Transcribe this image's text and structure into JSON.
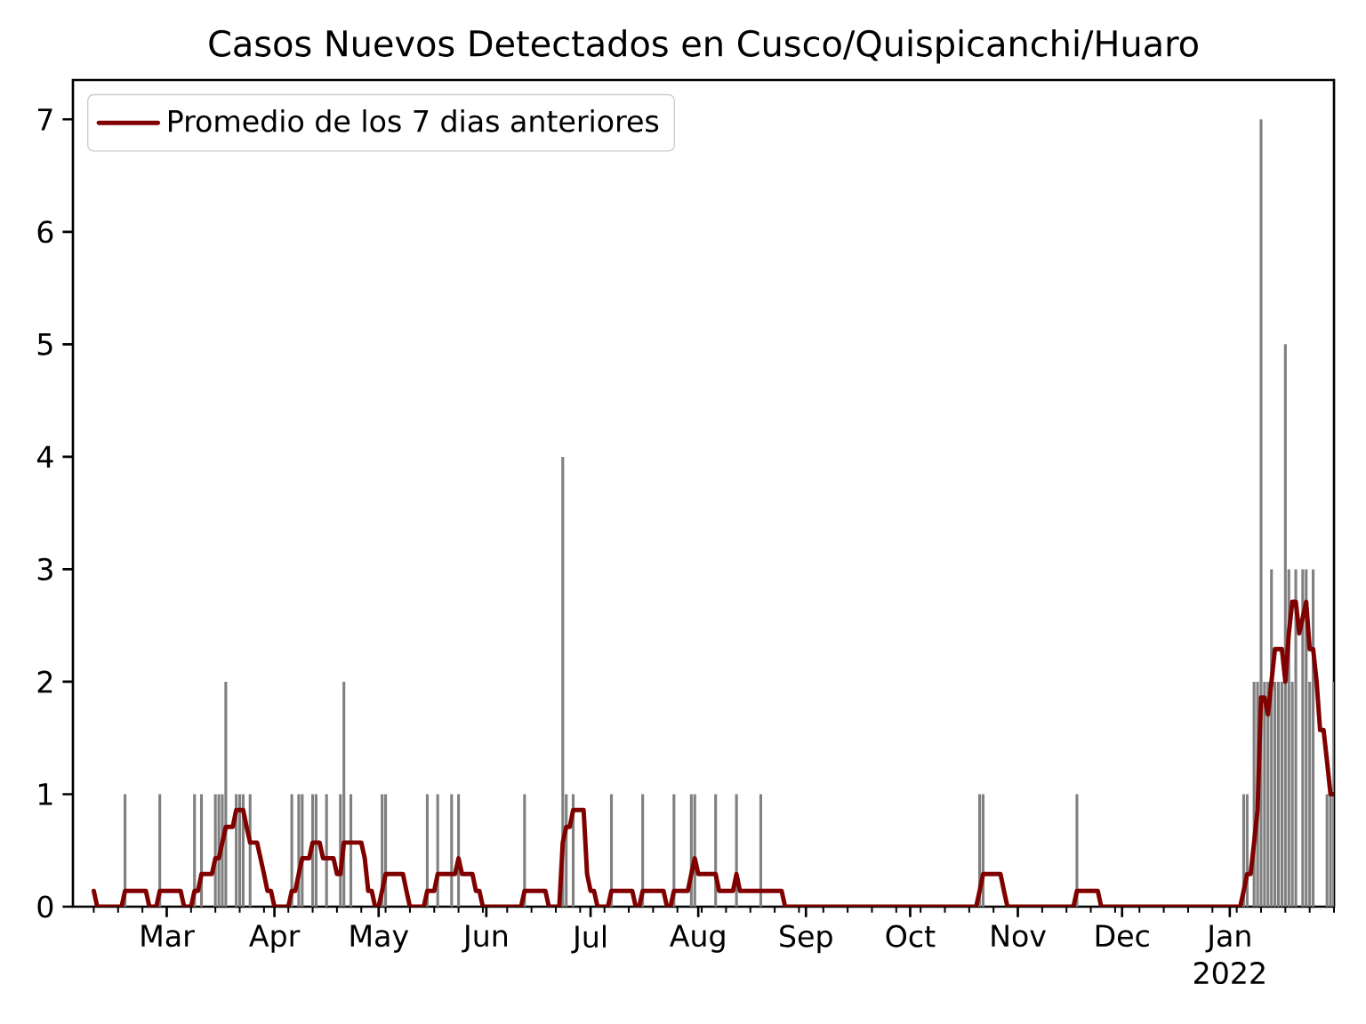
{
  "chart_data": {
    "type": "bar",
    "title": "Casos Nuevos Detectados en Cusco/Quispicanchi/Huaro",
    "xlim": [
      "2021-02-02",
      "2022-01-31"
    ],
    "ylim": [
      0,
      7.35
    ],
    "yticks": [
      0,
      1,
      2,
      3,
      4,
      5,
      6,
      7
    ],
    "xticks": [
      {
        "value": "2021-02-08",
        "label": null
      },
      {
        "value": "2021-02-15",
        "label": null
      },
      {
        "value": "2021-02-22",
        "label": null
      },
      {
        "value": "2021-03-01",
        "label": "Mar"
      },
      {
        "value": "2021-03-08",
        "label": null
      },
      {
        "value": "2021-03-15",
        "label": null
      },
      {
        "value": "2021-03-22",
        "label": null
      },
      {
        "value": "2021-03-29",
        "label": null
      },
      {
        "value": "2021-04-01",
        "label": "Apr"
      },
      {
        "value": "2021-04-05",
        "label": null
      },
      {
        "value": "2021-04-12",
        "label": null
      },
      {
        "value": "2021-04-19",
        "label": null
      },
      {
        "value": "2021-04-26",
        "label": null
      },
      {
        "value": "2021-05-01",
        "label": "May"
      },
      {
        "value": "2021-05-03",
        "label": null
      },
      {
        "value": "2021-05-10",
        "label": null
      },
      {
        "value": "2021-05-17",
        "label": null
      },
      {
        "value": "2021-05-24",
        "label": null
      },
      {
        "value": "2021-05-31",
        "label": null
      },
      {
        "value": "2021-06-01",
        "label": "Jun"
      },
      {
        "value": "2021-06-07",
        "label": null
      },
      {
        "value": "2021-06-14",
        "label": null
      },
      {
        "value": "2021-06-21",
        "label": null
      },
      {
        "value": "2021-06-28",
        "label": null
      },
      {
        "value": "2021-07-01",
        "label": "Jul"
      },
      {
        "value": "2021-07-05",
        "label": null
      },
      {
        "value": "2021-07-12",
        "label": null
      },
      {
        "value": "2021-07-19",
        "label": null
      },
      {
        "value": "2021-07-26",
        "label": null
      },
      {
        "value": "2021-08-01",
        "label": "Aug"
      },
      {
        "value": "2021-08-02",
        "label": null
      },
      {
        "value": "2021-08-09",
        "label": null
      },
      {
        "value": "2021-08-16",
        "label": null
      },
      {
        "value": "2021-08-23",
        "label": null
      },
      {
        "value": "2021-08-30",
        "label": null
      },
      {
        "value": "2021-09-01",
        "label": "Sep"
      },
      {
        "value": "2021-09-06",
        "label": null
      },
      {
        "value": "2021-09-13",
        "label": null
      },
      {
        "value": "2021-09-20",
        "label": null
      },
      {
        "value": "2021-09-27",
        "label": null
      },
      {
        "value": "2021-10-01",
        "label": "Oct"
      },
      {
        "value": "2021-10-04",
        "label": null
      },
      {
        "value": "2021-10-11",
        "label": null
      },
      {
        "value": "2021-10-18",
        "label": null
      },
      {
        "value": "2021-10-25",
        "label": null
      },
      {
        "value": "2021-11-01",
        "label": "Nov"
      },
      {
        "value": "2021-11-08",
        "label": null
      },
      {
        "value": "2021-11-15",
        "label": null
      },
      {
        "value": "2021-11-22",
        "label": null
      },
      {
        "value": "2021-11-29",
        "label": null
      },
      {
        "value": "2021-12-01",
        "label": "Dec"
      },
      {
        "value": "2021-12-06",
        "label": null
      },
      {
        "value": "2021-12-13",
        "label": null
      },
      {
        "value": "2021-12-20",
        "label": null
      },
      {
        "value": "2021-12-27",
        "label": null
      },
      {
        "value": "2022-01-01",
        "label": "Jan 2022"
      },
      {
        "value": "2022-01-03",
        "label": null
      },
      {
        "value": "2022-01-10",
        "label": null
      },
      {
        "value": "2022-01-17",
        "label": null
      },
      {
        "value": "2022-01-24",
        "label": null
      },
      {
        "value": "2022-01-31",
        "label": null
      }
    ],
    "legend": "top left",
    "series": [
      {
        "color": "#808080",
        "x": [
          "2021-02-17",
          "2021-02-27",
          "2021-03-09",
          "2021-03-11",
          "2021-03-15",
          "2021-03-16",
          "2021-03-17",
          "2021-03-18",
          "2021-03-21",
          "2021-03-22",
          "2021-03-23",
          "2021-03-25",
          "2021-04-06",
          "2021-04-08",
          "2021-04-09",
          "2021-04-12",
          "2021-04-13",
          "2021-04-16",
          "2021-04-20",
          "2021-04-21",
          "2021-04-23",
          "2021-05-02",
          "2021-05-03",
          "2021-05-15",
          "2021-05-18",
          "2021-05-22",
          "2021-05-24",
          "2021-06-12",
          "2021-06-23",
          "2021-06-24",
          "2021-06-26",
          "2021-07-07",
          "2021-07-16",
          "2021-07-25",
          "2021-07-30",
          "2021-07-31",
          "2021-08-06",
          "2021-08-12",
          "2021-08-19",
          "2021-10-21",
          "2021-10-22",
          "2021-11-18",
          "2022-01-05",
          "2022-01-06",
          "2022-01-08",
          "2022-01-09",
          "2022-01-10",
          "2022-01-11",
          "2022-01-12",
          "2022-01-13",
          "2022-01-14",
          "2022-01-15",
          "2022-01-16",
          "2022-01-17",
          "2022-01-18",
          "2022-01-19",
          "2022-01-20",
          "2022-01-22",
          "2022-01-23",
          "2022-01-24",
          "2022-01-25",
          "2022-01-29",
          "2022-01-30",
          "2022-01-31"
        ],
        "values": [
          1,
          1,
          1,
          1,
          1,
          1,
          1,
          2,
          1,
          1,
          1,
          1,
          1,
          1,
          1,
          1,
          1,
          1,
          1,
          2,
          1,
          1,
          1,
          1,
          1,
          1,
          1,
          1,
          4,
          1,
          1,
          1,
          1,
          1,
          1,
          1,
          1,
          1,
          1,
          1,
          1,
          1,
          1,
          1,
          2,
          2,
          7,
          2,
          2,
          3,
          2,
          2,
          2,
          5,
          3,
          2,
          3,
          3,
          3,
          2,
          3,
          1,
          1,
          2
        ]
      },
      {
        "type": "line",
        "name": "Promedio de los 7 dias anteriores",
        "color": "#800000",
        "x": [
          "2021-02-08",
          "2021-02-09",
          "2021-02-16",
          "2021-02-17",
          "2021-02-23",
          "2021-02-24",
          "2021-02-26",
          "2021-02-27",
          "2021-03-05",
          "2021-03-06",
          "2021-03-08",
          "2021-03-09",
          "2021-03-10",
          "2021-03-11",
          "2021-03-14",
          "2021-03-15",
          "2021-03-16",
          "2021-03-17",
          "2021-03-18",
          "2021-03-20",
          "2021-03-21",
          "2021-03-23",
          "2021-03-24",
          "2021-03-25",
          "2021-03-27",
          "2021-03-28",
          "2021-03-29",
          "2021-03-30",
          "2021-03-31",
          "2021-04-01",
          "2021-04-05",
          "2021-04-06",
          "2021-04-07",
          "2021-04-08",
          "2021-04-09",
          "2021-04-11",
          "2021-04-12",
          "2021-04-14",
          "2021-04-15",
          "2021-04-18",
          "2021-04-19",
          "2021-04-20",
          "2021-04-21",
          "2021-04-26",
          "2021-04-27",
          "2021-04-28",
          "2021-04-29",
          "2021-04-30",
          "2021-05-01",
          "2021-05-02",
          "2021-05-03",
          "2021-05-08",
          "2021-05-09",
          "2021-05-10",
          "2021-05-14",
          "2021-05-15",
          "2021-05-17",
          "2021-05-18",
          "2021-05-23",
          "2021-05-24",
          "2021-05-25",
          "2021-05-28",
          "2021-05-29",
          "2021-05-30",
          "2021-05-31",
          "2021-06-11",
          "2021-06-12",
          "2021-06-18",
          "2021-06-19",
          "2021-06-22",
          "2021-06-23",
          "2021-06-24",
          "2021-06-25",
          "2021-06-26",
          "2021-06-29",
          "2021-06-30",
          "2021-07-01",
          "2021-07-02",
          "2021-07-03",
          "2021-07-06",
          "2021-07-07",
          "2021-07-13",
          "2021-07-14",
          "2021-07-15",
          "2021-07-16",
          "2021-07-22",
          "2021-07-23",
          "2021-07-24",
          "2021-07-25",
          "2021-07-29",
          "2021-07-30",
          "2021-07-31",
          "2021-08-01",
          "2021-08-06",
          "2021-08-07",
          "2021-08-11",
          "2021-08-12",
          "2021-08-13",
          "2021-08-25",
          "2021-08-26",
          "2021-10-20",
          "2021-10-21",
          "2021-10-22",
          "2021-10-27",
          "2021-10-28",
          "2021-10-29",
          "2021-11-17",
          "2021-11-18",
          "2021-11-24",
          "2021-11-25",
          "2022-01-04",
          "2022-01-05",
          "2022-01-06",
          "2022-01-07",
          "2022-01-08",
          "2022-01-09",
          "2022-01-10",
          "2022-01-11",
          "2022-01-12",
          "2022-01-13",
          "2022-01-14",
          "2022-01-15",
          "2022-01-16",
          "2022-01-17",
          "2022-01-18",
          "2022-01-19",
          "2022-01-20",
          "2022-01-21",
          "2022-01-22",
          "2022-01-23",
          "2022-01-24",
          "2022-01-25",
          "2022-01-26",
          "2022-01-27",
          "2022-01-28",
          "2022-01-29",
          "2022-01-30",
          "2022-01-31"
        ],
        "values": [
          0.14,
          0,
          0,
          0.14,
          0.14,
          0,
          0,
          0.14,
          0.14,
          0,
          0,
          0.14,
          0.14,
          0.29,
          0.29,
          0.43,
          0.43,
          0.57,
          0.71,
          0.71,
          0.86,
          0.86,
          0.71,
          0.57,
          0.57,
          0.43,
          0.29,
          0.14,
          0.14,
          0,
          0,
          0.14,
          0.14,
          0.29,
          0.43,
          0.43,
          0.57,
          0.57,
          0.43,
          0.43,
          0.29,
          0.29,
          0.57,
          0.57,
          0.43,
          0.14,
          0.14,
          0,
          0,
          0.14,
          0.29,
          0.29,
          0.14,
          0,
          0,
          0.14,
          0.14,
          0.29,
          0.29,
          0.43,
          0.29,
          0.29,
          0.14,
          0.14,
          0,
          0,
          0.14,
          0.14,
          0,
          0,
          0.57,
          0.71,
          0.71,
          0.86,
          0.86,
          0.29,
          0.14,
          0.14,
          0,
          0,
          0.14,
          0.14,
          0,
          0,
          0.14,
          0.14,
          0,
          0,
          0.14,
          0.14,
          0.29,
          0.43,
          0.29,
          0.29,
          0.14,
          0.14,
          0.29,
          0.14,
          0.14,
          0,
          0,
          0.14,
          0.29,
          0.29,
          0.14,
          0,
          0,
          0.14,
          0.14,
          0,
          0,
          0.14,
          0.29,
          0.29,
          0.57,
          0.86,
          1.86,
          1.86,
          1.71,
          2.0,
          2.29,
          2.29,
          2.29,
          2.0,
          2.43,
          2.71,
          2.71,
          2.43,
          2.57,
          2.71,
          2.29,
          2.29,
          2.0,
          1.57,
          1.57,
          1.29,
          1.0,
          1.0
        ]
      }
    ]
  }
}
